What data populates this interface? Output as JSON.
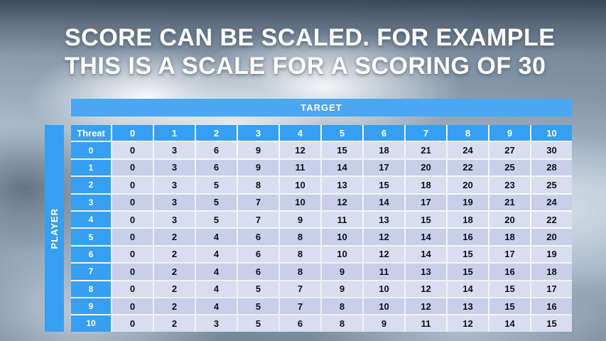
{
  "title": {
    "line1": "SCORE CAN BE SCALED. FOR EXAMPLE",
    "line2": "THIS IS A SCALE FOR A SCORING OF 30"
  },
  "table": {
    "target_label": "TARGET",
    "player_label": "PLAYER",
    "threat_label": "Threat",
    "column_headers": [
      "0",
      "1",
      "2",
      "3",
      "4",
      "5",
      "6",
      "7",
      "8",
      "9",
      "10"
    ],
    "rows": [
      {
        "label": "0",
        "values": [
          0,
          3,
          6,
          9,
          12,
          15,
          18,
          21,
          24,
          27,
          30
        ]
      },
      {
        "label": "1",
        "values": [
          0,
          3,
          6,
          9,
          11,
          14,
          17,
          20,
          22,
          25,
          28
        ]
      },
      {
        "label": "2",
        "values": [
          0,
          3,
          5,
          8,
          10,
          13,
          15,
          18,
          20,
          23,
          25
        ]
      },
      {
        "label": "3",
        "values": [
          0,
          3,
          5,
          7,
          10,
          12,
          14,
          17,
          19,
          21,
          24
        ]
      },
      {
        "label": "4",
        "values": [
          0,
          3,
          5,
          7,
          9,
          11,
          13,
          15,
          18,
          20,
          22
        ]
      },
      {
        "label": "5",
        "values": [
          0,
          2,
          4,
          6,
          8,
          10,
          12,
          14,
          16,
          18,
          20
        ]
      },
      {
        "label": "6",
        "values": [
          0,
          2,
          4,
          6,
          8,
          10,
          12,
          14,
          15,
          17,
          19
        ]
      },
      {
        "label": "7",
        "values": [
          0,
          2,
          4,
          6,
          8,
          9,
          11,
          13,
          15,
          16,
          18
        ]
      },
      {
        "label": "8",
        "values": [
          0,
          2,
          4,
          5,
          7,
          9,
          10,
          12,
          14,
          15,
          17
        ]
      },
      {
        "label": "9",
        "values": [
          0,
          2,
          4,
          5,
          7,
          8,
          10,
          12,
          13,
          15,
          16
        ]
      },
      {
        "label": "10",
        "values": [
          0,
          2,
          3,
          5,
          6,
          8,
          9,
          11,
          12,
          14,
          15
        ]
      }
    ]
  },
  "colors": {
    "accent": "#369ff2",
    "target": "#4aa7f4",
    "row_even": "#d8def0",
    "row_odd": "#c7cfe9"
  }
}
